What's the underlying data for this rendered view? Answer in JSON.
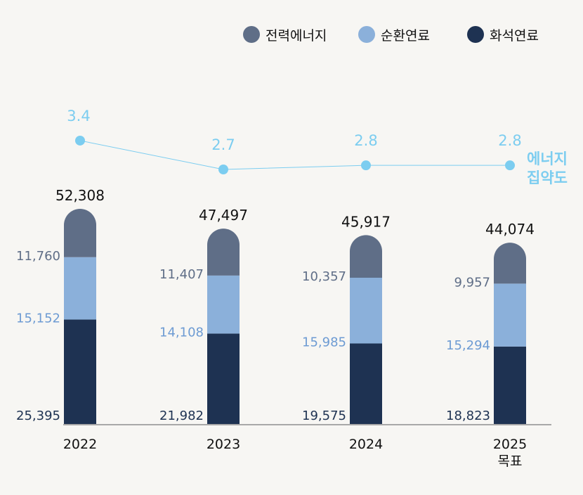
{
  "chart_data": {
    "type": "bar",
    "stacked": true,
    "categories": [
      "2022",
      "2023",
      "2024",
      "2025"
    ],
    "category_sublabels": [
      "",
      "",
      "",
      "목표"
    ],
    "series": [
      {
        "name": "화석연료",
        "color": "#1e3252",
        "label_color": "#1e3252",
        "values": [
          25395,
          21982,
          19575,
          18823
        ],
        "labels": [
          "25,395",
          "21,982",
          "19,575",
          "18,823"
        ]
      },
      {
        "name": "순환연료",
        "color": "#8bb0da",
        "label_color": "#6d9bd3",
        "values": [
          15152,
          14108,
          15985,
          15294
        ],
        "labels": [
          "15,152",
          "14,108",
          "15,985",
          "15,294"
        ]
      },
      {
        "name": "전력에너지",
        "color": "#5f6e87",
        "label_color": "#5f6e87",
        "values": [
          11760,
          11407,
          10357,
          9957
        ],
        "labels": [
          "11,760",
          "11,407",
          "10,357",
          "9,957"
        ]
      }
    ],
    "totals": [
      52308,
      47497,
      45917,
      44074
    ],
    "total_labels": [
      "52,308",
      "47,497",
      "45,917",
      "44,074"
    ],
    "line": {
      "name": "에너지 집약도",
      "name_lines": [
        "에너지",
        "집약도"
      ],
      "color": "#7ccdf0",
      "values": [
        3.4,
        2.7,
        2.8,
        2.8
      ],
      "labels": [
        "3.4",
        "2.7",
        "2.8",
        "2.8"
      ]
    },
    "legend": {
      "placement": "top-right",
      "order": [
        "전력에너지",
        "순환연료",
        "화석연료"
      ]
    },
    "grid": false
  }
}
